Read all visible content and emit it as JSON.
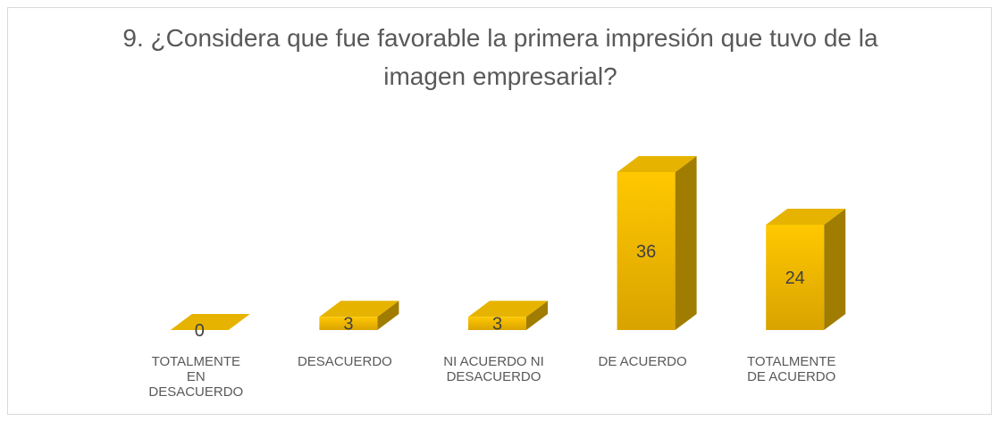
{
  "chart_data": {
    "type": "bar3d",
    "title": "9. ¿Considera que fue favorable la primera impresión que tuvo de la imagen empresarial?",
    "categories": [
      "TOTALMENTE EN DESACUERDO",
      "DESACUERDO",
      "NI ACUERDO NI DESACUERDO",
      "DE ACUERDO",
      "TOTALMENTE DE ACUERDO"
    ],
    "values": [
      0,
      3,
      3,
      36,
      24
    ],
    "color": "#ffc000"
  }
}
